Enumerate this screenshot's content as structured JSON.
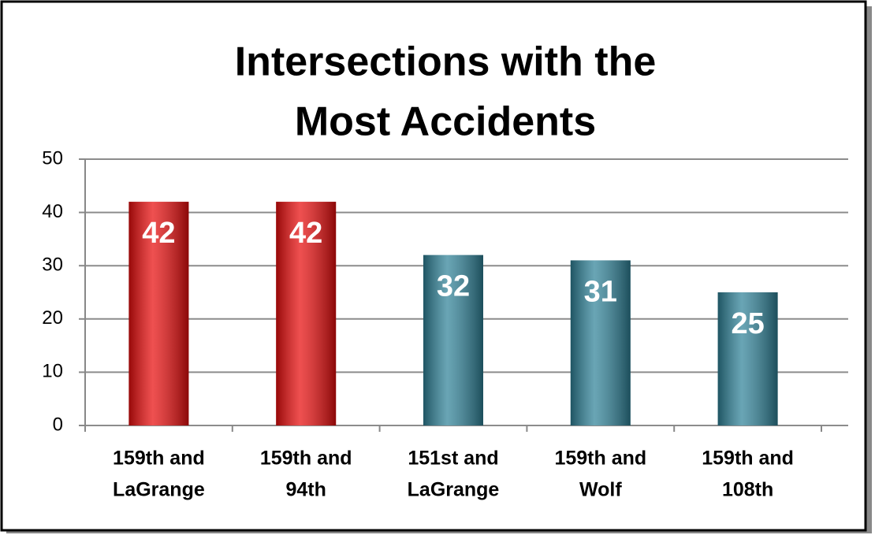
{
  "chart_data": {
    "type": "bar",
    "title": [
      "Intersections with the",
      "Most Accidents"
    ],
    "categories": [
      [
        "159th and",
        "LaGrange"
      ],
      [
        "159th and",
        "94th"
      ],
      [
        "151st and",
        "LaGrange"
      ],
      [
        "159th and",
        "Wolf"
      ],
      [
        "159th and",
        "108th"
      ]
    ],
    "values": [
      42,
      42,
      32,
      31,
      25
    ],
    "colors": [
      "#e80c0c",
      "#e80c0c",
      "#2f8298",
      "#2f8298",
      "#2f8298"
    ],
    "ylim": [
      0,
      50
    ],
    "yticks": [
      0,
      10,
      20,
      30,
      40,
      50
    ],
    "grid": true
  }
}
